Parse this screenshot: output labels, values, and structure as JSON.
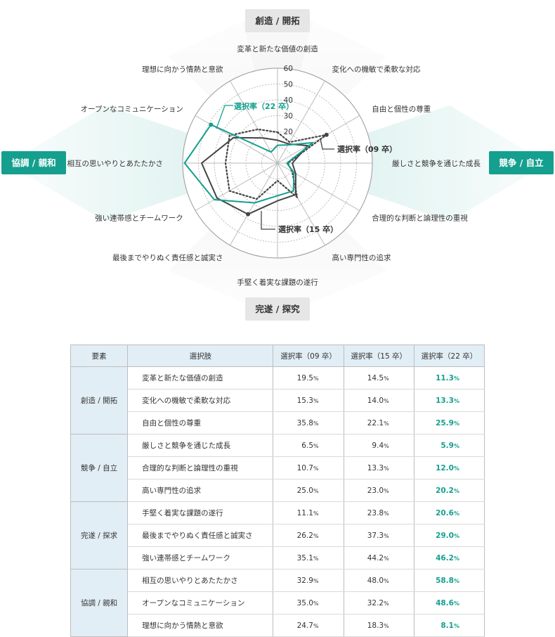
{
  "categories": {
    "top": "創造 / 開拓",
    "right": "競争 / 自立",
    "bottom": "完遂 / 探究",
    "left": "協調 / 親和"
  },
  "colors": {
    "s09": "#444444",
    "s15": "#444444",
    "s22": "#159f8f",
    "grid": "#bbbbbb",
    "category_top_bottom": "#e6e6e6",
    "category_left_right": "#159f8f"
  },
  "chart_data": {
    "type": "radar",
    "rlim": [
      0,
      60
    ],
    "ticks": [
      "20",
      "30",
      "40",
      "50",
      "60"
    ],
    "axes": [
      "変革と新たな価値の創造",
      "変化への機敏で柔軟な対応",
      "自由と個性の尊重",
      "厳しさと競争を通じた成長",
      "合理的な判断と論理性の重視",
      "高い専門性の追求",
      "手堅く着実な課題の遂行",
      "最後までやりぬく責任感と誠実さ",
      "強い連帯感とチームワーク",
      "相互の思いやりとあたたかさ",
      "オープンなコミュニケーション",
      "理想に向かう情熱と意欲"
    ],
    "series": [
      {
        "name": "選択率（09 卒）",
        "style": "dotted",
        "values": [
          19.5,
          15.3,
          35.8,
          6.5,
          10.7,
          25.0,
          11.1,
          26.2,
          35.1,
          32.9,
          35.0,
          24.7
        ]
      },
      {
        "name": "選択率（15 卒）",
        "style": "solid",
        "values": [
          14.5,
          14.0,
          22.1,
          9.4,
          13.3,
          23.0,
          23.8,
          37.3,
          44.2,
          48.0,
          32.2,
          18.3
        ]
      },
      {
        "name": "選択率（22 卒）",
        "style": "solid",
        "values": [
          11.3,
          13.3,
          25.9,
          5.9,
          12.0,
          20.2,
          20.6,
          29.0,
          46.2,
          58.8,
          48.6,
          8.1
        ]
      }
    ]
  },
  "table": {
    "headers": [
      "要素",
      "選択肢",
      "選択率（09 卒）",
      "選択率（15 卒）",
      "選択率（22 卒）"
    ],
    "pct": "%",
    "groups": [
      {
        "name": "創造 / 開拓",
        "rows": [
          {
            "label": "変革と新たな価値の創造",
            "v09": "19.5",
            "v15": "14.5",
            "v22": "11.3"
          },
          {
            "label": "変化への機敏で柔軟な対応",
            "v09": "15.3",
            "v15": "14.0",
            "v22": "13.3"
          },
          {
            "label": "自由と個性の尊重",
            "v09": "35.8",
            "v15": "22.1",
            "v22": "25.9"
          }
        ]
      },
      {
        "name": "競争 / 自立",
        "rows": [
          {
            "label": "厳しさと競争を通じた成長",
            "v09": "6.5",
            "v15": "9.4",
            "v22": "5.9"
          },
          {
            "label": "合理的な判断と論理性の重視",
            "v09": "10.7",
            "v15": "13.3",
            "v22": "12.0"
          },
          {
            "label": "高い専門性の追求",
            "v09": "25.0",
            "v15": "23.0",
            "v22": "20.2"
          }
        ]
      },
      {
        "name": "完遂 / 探求",
        "rows": [
          {
            "label": "手堅く着実な課題の遂行",
            "v09": "11.1",
            "v15": "23.8",
            "v22": "20.6"
          },
          {
            "label": "最後までやりぬく責任感と誠実さ",
            "v09": "26.2",
            "v15": "37.3",
            "v22": "29.0"
          },
          {
            "label": "強い連帯感とチームワーク",
            "v09": "35.1",
            "v15": "44.2",
            "v22": "46.2"
          }
        ]
      },
      {
        "name": "協調 / 親和",
        "rows": [
          {
            "label": "相互の思いやりとあたたかさ",
            "v09": "32.9",
            "v15": "48.0",
            "v22": "58.8"
          },
          {
            "label": "オープンなコミュニケーション",
            "v09": "35.0",
            "v15": "32.2",
            "v22": "48.6"
          },
          {
            "label": "理想に向かう情熱と意欲",
            "v09": "24.7",
            "v15": "18.3",
            "v22": "8.1"
          }
        ]
      }
    ]
  }
}
